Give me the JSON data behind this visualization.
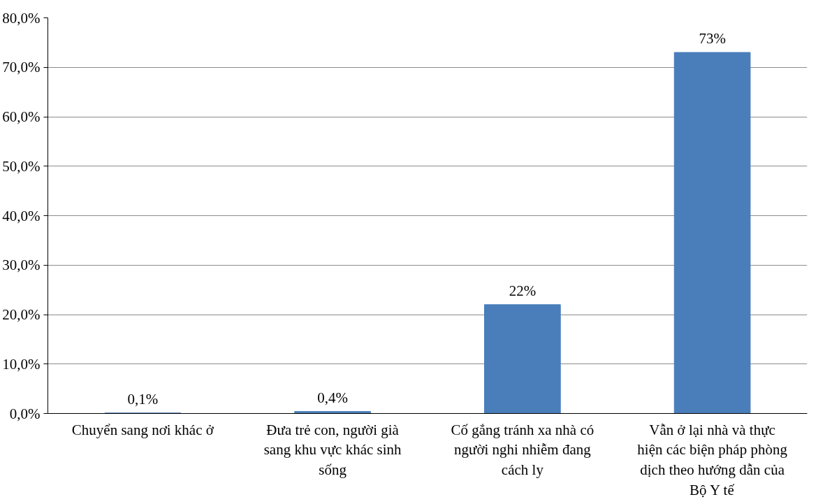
{
  "chart_data": {
    "type": "bar",
    "categories": [
      "Chuyển sang nơi khác ở",
      "Đưa trẻ con, người già sang khu vực khác sinh sống",
      "Cố gắng tránh xa nhà có người nghi nhiễm đang cách ly",
      "Vẫn ở lại nhà và thực hiện các biện pháp phòng dịch theo hướng dẫn của Bộ Y tế"
    ],
    "values": [
      0.1,
      0.4,
      22,
      73
    ],
    "value_labels": [
      "0,1%",
      "0,4%",
      "22%",
      "73%"
    ],
    "color": "#4a7ebb",
    "ylim": [
      0,
      80
    ],
    "yticks": [
      {
        "value": 0,
        "label": "0,0%"
      },
      {
        "value": 10,
        "label": "10,0%"
      },
      {
        "value": 20,
        "label": "20,0%"
      },
      {
        "value": 30,
        "label": "30,0%"
      },
      {
        "value": 40,
        "label": "40,0%"
      },
      {
        "value": 50,
        "label": "50,0%"
      },
      {
        "value": 60,
        "label": "60,0%"
      },
      {
        "value": 70,
        "label": "70,0%"
      },
      {
        "value": 80,
        "label": "80,0%"
      }
    ],
    "grid": "y"
  }
}
